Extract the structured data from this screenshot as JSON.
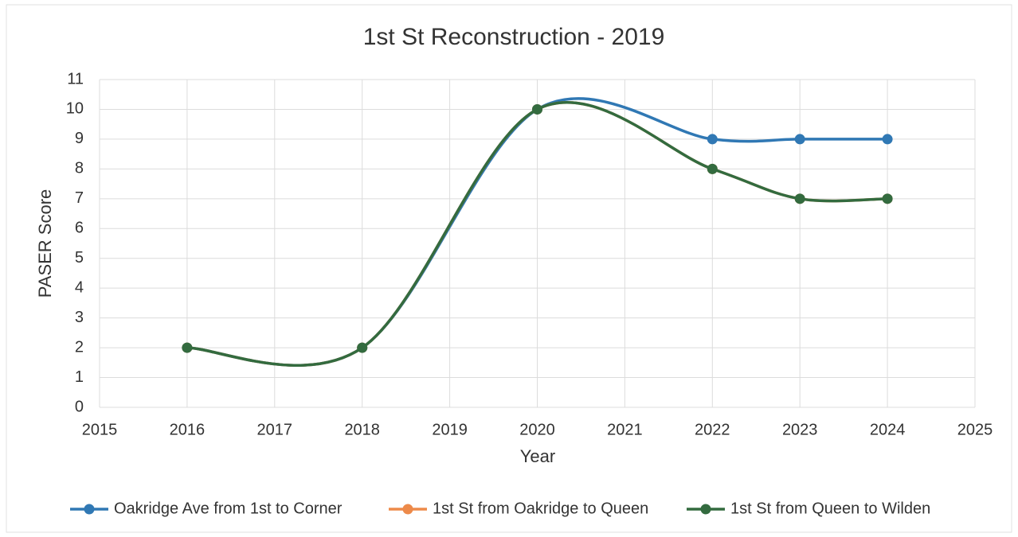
{
  "chart_data": {
    "type": "line",
    "title": "1st St Reconstruction - 2019",
    "xlabel": "Year",
    "ylabel": "PASER Score",
    "x": [
      2016,
      2018,
      2020,
      2022,
      2023,
      2024
    ],
    "series": [
      {
        "name": "Oakridge Ave from 1st to Corner",
        "color": "#3078b4",
        "values": [
          2,
          2,
          10,
          9,
          9,
          9
        ]
      },
      {
        "name": "1st St from Oakridge to Queen",
        "color": "#ed8a4a",
        "values": [
          2,
          2,
          10,
          8,
          7,
          7
        ]
      },
      {
        "name": "1st St from Queen to Wilden",
        "color": "#336b3f",
        "values": [
          2,
          2,
          10,
          8,
          7,
          7
        ]
      }
    ],
    "xlim": [
      2015,
      2025
    ],
    "xticks": [
      2015,
      2016,
      2017,
      2018,
      2019,
      2020,
      2021,
      2022,
      2023,
      2024,
      2025
    ],
    "ylim": [
      0,
      11
    ],
    "yticks": [
      0,
      1,
      2,
      3,
      4,
      5,
      6,
      7,
      8,
      9,
      10,
      11
    ],
    "grid": true,
    "smooth": true,
    "legend": "bottom"
  }
}
